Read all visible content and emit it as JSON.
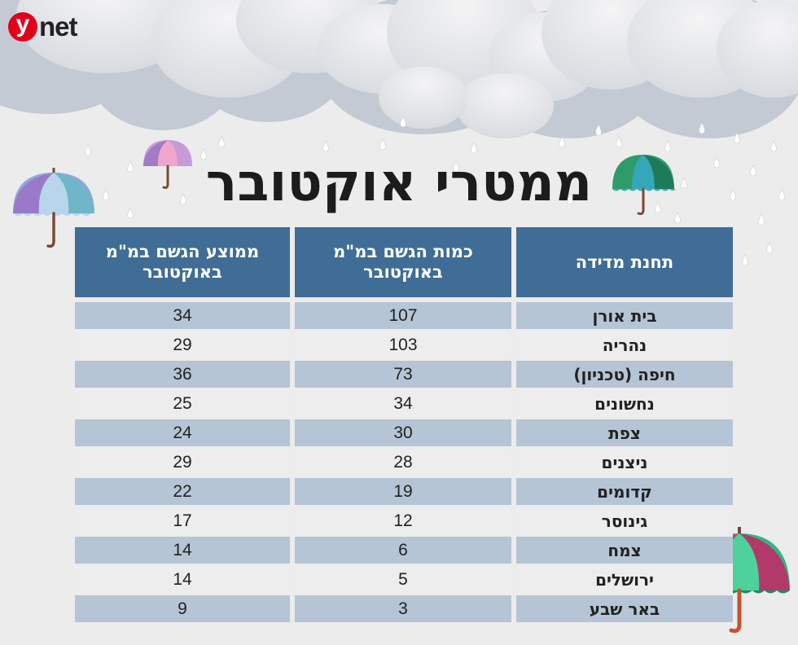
{
  "logo": {
    "y": "y",
    "net": "net"
  },
  "title": "ממטרי אוקטובר",
  "table": {
    "headers": [
      "תחנת מדידה",
      "כמות הגשם במ\"מ באוקטובר",
      "ממוצע הגשם במ\"מ באוקטובר"
    ],
    "rows": [
      [
        "בית אורן",
        "107",
        "34"
      ],
      [
        "נהריה",
        "103",
        "29"
      ],
      [
        "חיפה (טכניון)",
        "73",
        "36"
      ],
      [
        "נחשונים",
        "34",
        "25"
      ],
      [
        "צפת",
        "30",
        "24"
      ],
      [
        "ניצנים",
        "28",
        "29"
      ],
      [
        "קדומים",
        "19",
        "22"
      ],
      [
        "גינוסר",
        "12",
        "17"
      ],
      [
        "צמח",
        "6",
        "14"
      ],
      [
        "ירושלים",
        "5",
        "14"
      ],
      [
        "באר שבע",
        "3",
        "9"
      ]
    ]
  },
  "colors": {
    "header_bg": "#3f6d95",
    "row_blue": "#b5c5d5",
    "row_light": "#ededed",
    "background": "#ececec",
    "logo_red": "#e3001b"
  },
  "decorations": [
    "cloud",
    "raindrop",
    "umbrella-purple",
    "umbrella-pink",
    "umbrella-green",
    "umbrella-green-large"
  ]
}
